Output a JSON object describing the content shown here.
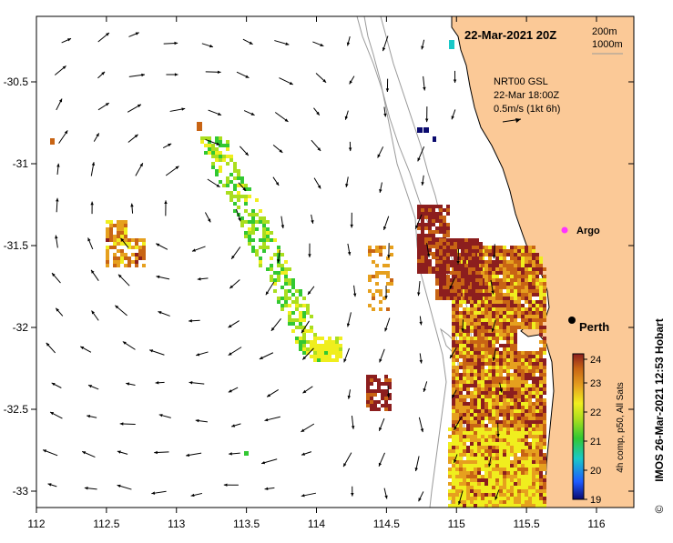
{
  "map": {
    "title": "22-Mar-2021 20Z",
    "depth_contours": [
      "200m",
      "1000m"
    ],
    "current_source": "NRT00 GSL",
    "current_time": "22-Mar 18:00Z",
    "current_scale": "0.5m/s (1kt 6h)",
    "place_label": "Perth",
    "float_label": "Argo",
    "credit": "IMOS 26-Mar-2021 12:53 Hobart",
    "copyright_symbol": "©",
    "lon_ticks": [
      "112",
      "112.5",
      "113",
      "113.5",
      "114",
      "114.5",
      "115",
      "115.5",
      "116"
    ],
    "lat_ticks": [
      "-30.5",
      "-31",
      "-31.5",
      "-32",
      "-32.5",
      "-33"
    ],
    "colorbar": {
      "label": "4h comp, p50, All Sats",
      "ticks": [
        "24",
        "23",
        "22",
        "21",
        "20",
        "19"
      ],
      "min": 19,
      "max": 24,
      "colors": [
        "#0a0a6e",
        "#1e5aff",
        "#19c8c8",
        "#32c832",
        "#aade1e",
        "#f0ee1e",
        "#e6a01e",
        "#c86414",
        "#8c1e1e"
      ]
    },
    "colors": {
      "land": "#fbc997",
      "ocean": "#ffffff",
      "contour": "#9a9a9a",
      "argo": "#ff33ff",
      "arrow": "#000000"
    }
  }
}
